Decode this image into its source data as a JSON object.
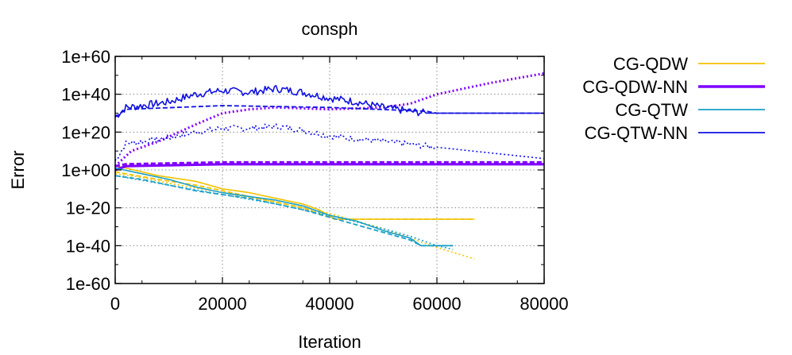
{
  "chart_data": {
    "type": "line",
    "title": "consph",
    "xlabel": "Iteration",
    "ylabel": "Error",
    "xlim": [
      0,
      80000
    ],
    "ylim_log10": [
      -60,
      60
    ],
    "y_scale": "log",
    "grid": true,
    "legend_placement": "outside-right",
    "x_ticks": [
      "0",
      "20000",
      "40000",
      "60000",
      "80000"
    ],
    "x_tick_values": [
      0,
      20000,
      40000,
      60000,
      80000
    ],
    "y_ticks": [
      "1e-60",
      "1e-40",
      "1e-20",
      "1e+00",
      "1e+20",
      "1e+40",
      "1e+60"
    ],
    "y_tick_values_log10": [
      -60,
      -40,
      -20,
      0,
      20,
      40,
      60
    ],
    "series": [
      {
        "name": "CG-QDW",
        "color": "#f2c200",
        "lines": [
          {
            "style": "solid",
            "x": [
              0,
              2000,
              8000,
              15000,
              20000,
              25000,
              30000,
              35000,
              38000,
              41000,
              45000,
              55000,
              60000,
              67000
            ],
            "y_log10": [
              2,
              1,
              -3,
              -6,
              -10,
              -12,
              -15,
              -18,
              -21,
              -26,
              -26,
              -26,
              -26,
              -26
            ]
          },
          {
            "style": "dashed",
            "x": [
              0,
              2000,
              8000,
              15000,
              20000,
              25000,
              30000,
              35000,
              38000,
              41000,
              45000,
              55000,
              60000,
              67000
            ],
            "y_log10": [
              -1,
              -2,
              -5,
              -8,
              -11,
              -14,
              -17,
              -20,
              -23,
              -26,
              -26,
              -26,
              -26,
              -26
            ]
          },
          {
            "style": "dotted",
            "x": [
              0,
              5000,
              10000,
              20000,
              30000,
              40000,
              50000,
              60000,
              67000
            ],
            "y_log10": [
              -2,
              -4,
              -7,
              -12,
              -17,
              -23,
              -31,
              -41,
              -47
            ]
          }
        ]
      },
      {
        "name": "CG-QDW-NN",
        "color": "#7f00ff",
        "lines": [
          {
            "style": "solid",
            "x": [
              0,
              2000,
              20000,
              40000,
              60000,
              80000
            ],
            "y_log10": [
              0,
              2,
              3,
              3,
              3,
              3
            ]
          },
          {
            "style": "dashed",
            "x": [
              0,
              2000,
              20000,
              40000,
              60000,
              80000
            ],
            "y_log10": [
              2,
              3,
              4,
              4,
              4,
              4
            ]
          },
          {
            "style": "dotted",
            "x": [
              0,
              3000,
              8000,
              15000,
              20000,
              25000,
              30000,
              40000,
              50000,
              55000,
              60000,
              70000,
              80000
            ],
            "y_log10": [
              2,
              10,
              15,
              24,
              30,
              32,
              33,
              32,
              33,
              35,
              40,
              46,
              51
            ]
          }
        ]
      },
      {
        "name": "CG-QTW",
        "color": "#1aa0c8",
        "lines": [
          {
            "style": "solid",
            "x": [
              0,
              5000,
              10000,
              15000,
              20000,
              25000,
              30000,
              35000,
              40000,
              45000,
              50000,
              55000,
              57000,
              63000
            ],
            "y_log10": [
              1,
              -2,
              -5,
              -9,
              -12,
              -14,
              -16,
              -19,
              -24,
              -27,
              -32,
              -36,
              -40,
              -40
            ]
          },
          {
            "style": "dashed",
            "x": [
              0,
              5000,
              10000,
              15000,
              20000,
              25000,
              30000,
              35000,
              40000,
              45000,
              50000,
              55000,
              57000,
              63000
            ],
            "y_log10": [
              -3,
              -5,
              -8,
              -11,
              -13,
              -15,
              -18,
              -21,
              -25,
              -29,
              -33,
              -37,
              -40,
              -40
            ]
          },
          {
            "style": "dotted",
            "x": [
              0,
              10000,
              20000,
              30000,
              40000,
              50000,
              55000,
              60000,
              63000
            ],
            "y_log10": [
              -3,
              -8,
              -13,
              -18,
              -24,
              -31,
              -35,
              -40,
              -42
            ]
          }
        ]
      },
      {
        "name": "CG-QTW-NN",
        "color": "#1010e0",
        "lines": [
          {
            "style": "solid",
            "x": [
              0,
              2000,
              5000,
              10000,
              15000,
              20000,
              25000,
              30000,
              35000,
              40000,
              45000,
              50000,
              55000,
              58000,
              60000,
              70000,
              80000
            ],
            "y_log10": [
              28,
              33,
              34,
              36,
              40,
              42,
              41,
              43,
              41,
              38,
              36,
              33,
              31,
              30,
              30,
              30,
              30
            ]
          },
          {
            "style": "dashed",
            "x": [
              0,
              2000,
              20000,
              40000,
              58000,
              60000,
              80000
            ],
            "y_log10": [
              28,
              32,
              34,
              33,
              31,
              30,
              30
            ]
          },
          {
            "style": "dotted",
            "x": [
              0,
              2000,
              5000,
              10000,
              15000,
              20000,
              25000,
              30000,
              35000,
              40000,
              50000,
              60000,
              70000,
              80000
            ],
            "y_log10": [
              5,
              14,
              15,
              17,
              20,
              22,
              22,
              23,
              21,
              18,
              15,
              12,
              9,
              6
            ]
          }
        ]
      }
    ]
  }
}
